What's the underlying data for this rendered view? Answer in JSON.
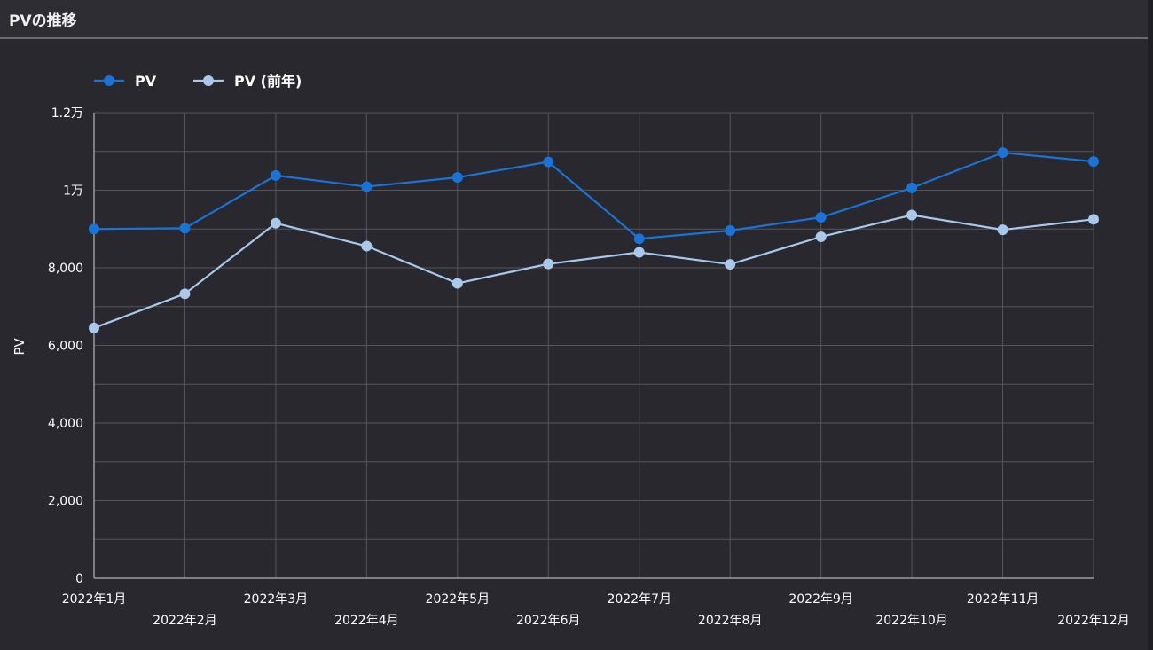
{
  "panel": {
    "title": "PVの推移"
  },
  "chart_data": {
    "type": "line",
    "title": "",
    "ylabel": "PV",
    "xlabel": "",
    "ylim": [
      0,
      12000
    ],
    "y_ticks": [
      {
        "value": 0,
        "label": "0"
      },
      {
        "value": 2000,
        "label": "2,000"
      },
      {
        "value": 4000,
        "label": "4,000"
      },
      {
        "value": 6000,
        "label": "6,000"
      },
      {
        "value": 8000,
        "label": "8,000"
      },
      {
        "value": 10000,
        "label": "1万"
      },
      {
        "value": 12000,
        "label": "1.2万"
      }
    ],
    "categories": [
      "2022年1月",
      "2022年2月",
      "2022年3月",
      "2022年4月",
      "2022年5月",
      "2022年6月",
      "2022年7月",
      "2022年8月",
      "2022年9月",
      "2022年10月",
      "2022年11月",
      "2022年12月"
    ],
    "series": [
      {
        "name": "PV",
        "color": "#1a73d6",
        "values": [
          9000,
          9020,
          10380,
          10090,
          10330,
          10730,
          8750,
          8960,
          9300,
          10060,
          10970,
          10740
        ]
      },
      {
        "name": "PV (前年)",
        "color": "#a8c8ec",
        "values": [
          6450,
          7330,
          9150,
          8560,
          7600,
          8100,
          8400,
          8090,
          8800,
          9360,
          8980,
          9250
        ]
      }
    ],
    "grid": true,
    "legend": "top-left"
  }
}
